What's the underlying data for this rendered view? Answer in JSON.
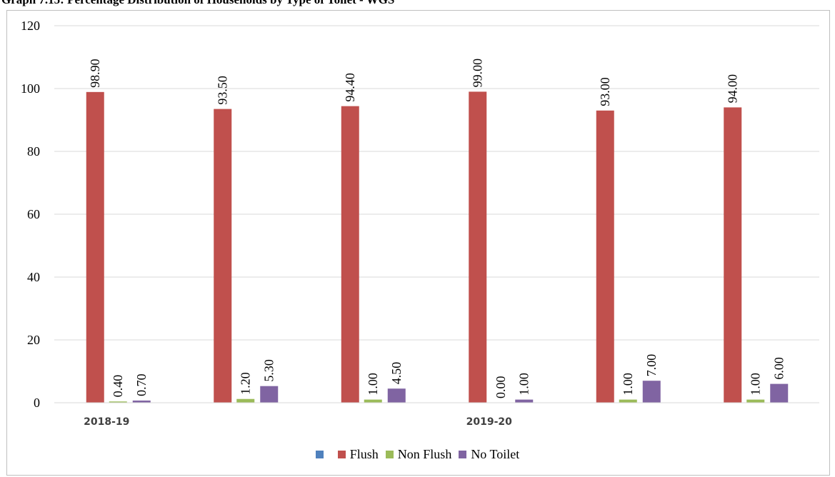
{
  "title": "Graph 7.15: Percentage Distribution of Households by Type of Toilet - WGS",
  "chart_data": {
    "type": "bar",
    "categories": [
      "2018-19",
      "",
      "",
      "2019-20",
      "",
      ""
    ],
    "series": [
      {
        "name": "",
        "color": "#4f81bd",
        "values": [
          0,
          0,
          0,
          0,
          0,
          0
        ]
      },
      {
        "name": "Flush",
        "color": "#c0504d",
        "values": [
          98.9,
          93.5,
          94.4,
          99.0,
          93.0,
          94.0
        ]
      },
      {
        "name": "Non Flush",
        "color": "#9bbb59",
        "values": [
          0.4,
          1.2,
          1.0,
          0.0,
          1.0,
          1.0
        ]
      },
      {
        "name": "No Toilet",
        "color": "#8064a2",
        "values": [
          0.7,
          5.3,
          4.5,
          1.0,
          7.0,
          6.0
        ]
      }
    ],
    "data_labels": {
      "Flush": [
        "98.90",
        "93.50",
        "94.40",
        "99.00",
        "93.00",
        "94.00"
      ],
      "Non Flush": [
        "0.40",
        "1.20",
        "1.00",
        "0.00",
        "1.00",
        "1.00"
      ],
      "No Toilet": [
        "0.70",
        "5.30",
        "4.50",
        "1.00",
        "7.00",
        "6.00"
      ]
    },
    "yticks": [
      "0",
      "20",
      "40",
      "60",
      "80",
      "100",
      "120"
    ],
    "ylim": [
      0,
      120
    ],
    "grid": true,
    "legend_position": "bottom"
  }
}
